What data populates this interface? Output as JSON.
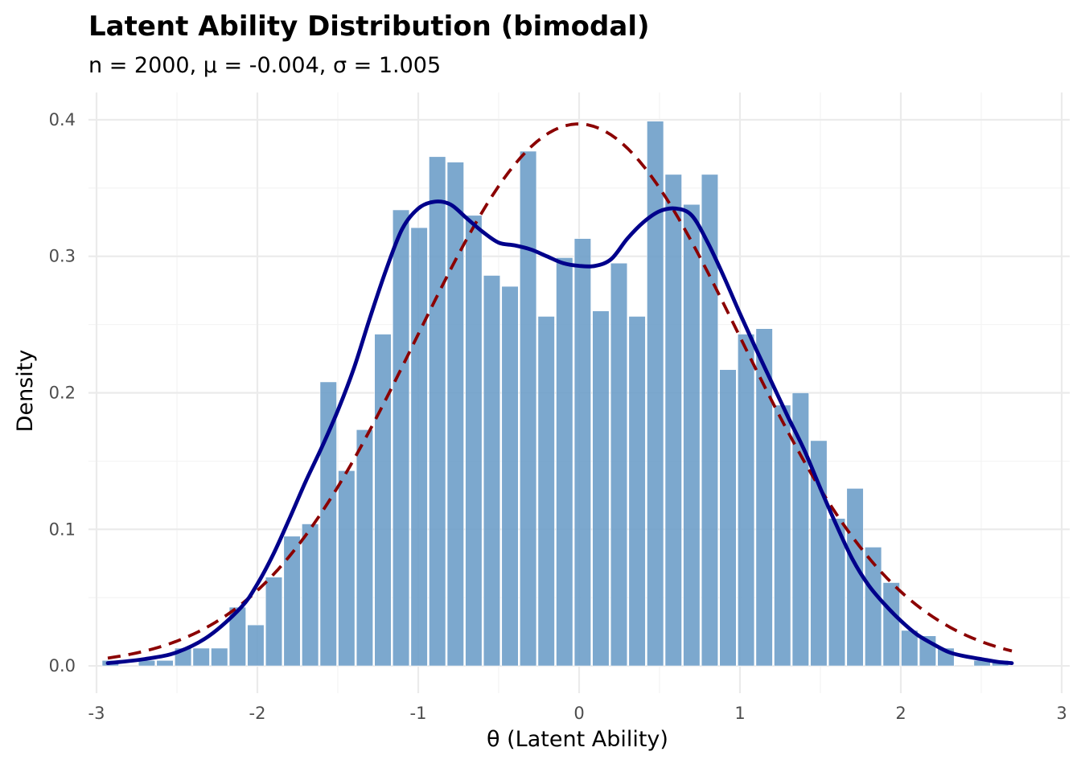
{
  "chart_data": {
    "type": "histogram",
    "title": "Latent Ability Distribution (bimodal)",
    "subtitle": "n = 2000, μ = -0.004, σ = 1.005",
    "xlabel": "θ (Latent Ability)",
    "ylabel": "Density",
    "xlim": [
      -3.05,
      3.05
    ],
    "ylim": [
      -0.02,
      0.42
    ],
    "x_ticks": [
      -3,
      -2,
      -1,
      0,
      1,
      2,
      3
    ],
    "x_tick_labels": [
      "-3",
      "-2",
      "-1",
      "0",
      "1",
      "2",
      "3"
    ],
    "y_ticks": [
      0.0,
      0.1,
      0.2,
      0.3,
      0.4
    ],
    "y_tick_labels": [
      "0.0",
      "0.1",
      "0.2",
      "0.3",
      "0.4"
    ],
    "grid": true,
    "bin_width": 0.1129,
    "bin_start": -2.97,
    "bar_values": [
      0.004,
      0.0,
      0.004,
      0.004,
      0.013,
      0.013,
      0.013,
      0.043,
      0.03,
      0.065,
      0.095,
      0.104,
      0.208,
      0.143,
      0.173,
      0.243,
      0.334,
      0.321,
      0.373,
      0.369,
      0.33,
      0.286,
      0.278,
      0.377,
      0.256,
      0.299,
      0.313,
      0.26,
      0.295,
      0.256,
      0.399,
      0.36,
      0.338,
      0.36,
      0.217,
      0.243,
      0.247,
      0.191,
      0.2,
      0.165,
      0.108,
      0.13,
      0.087,
      0.061,
      0.026,
      0.022,
      0.013,
      0.0,
      0.004,
      0.004
    ],
    "kde": {
      "x": [
        -2.93,
        -2.7,
        -2.5,
        -2.3,
        -2.1,
        -2.0,
        -1.9,
        -1.8,
        -1.7,
        -1.6,
        -1.5,
        -1.4,
        -1.3,
        -1.2,
        -1.1,
        -1.0,
        -0.9,
        -0.8,
        -0.7,
        -0.6,
        -0.5,
        -0.4,
        -0.3,
        -0.2,
        -0.1,
        0.0,
        0.1,
        0.2,
        0.3,
        0.4,
        0.5,
        0.6,
        0.7,
        0.8,
        0.9,
        1.0,
        1.1,
        1.2,
        1.3,
        1.4,
        1.5,
        1.6,
        1.7,
        1.8,
        1.9,
        2.0,
        2.1,
        2.2,
        2.3,
        2.4,
        2.5,
        2.6,
        2.69
      ],
      "y": [
        0.002,
        0.005,
        0.01,
        0.022,
        0.043,
        0.06,
        0.082,
        0.108,
        0.135,
        0.16,
        0.187,
        0.218,
        0.255,
        0.29,
        0.32,
        0.335,
        0.34,
        0.338,
        0.328,
        0.318,
        0.31,
        0.308,
        0.305,
        0.3,
        0.295,
        0.293,
        0.293,
        0.298,
        0.313,
        0.325,
        0.333,
        0.335,
        0.33,
        0.31,
        0.285,
        0.258,
        0.232,
        0.207,
        0.182,
        0.158,
        0.13,
        0.103,
        0.078,
        0.059,
        0.045,
        0.033,
        0.023,
        0.016,
        0.01,
        0.007,
        0.005,
        0.003,
        0.002
      ]
    },
    "normal": {
      "mu": -0.004,
      "sigma": 1.005,
      "x_range": [
        -2.93,
        2.69
      ]
    },
    "colors": {
      "bars": "#6e9fc9",
      "kde": "#00008b",
      "normal": "#8b0000"
    }
  }
}
